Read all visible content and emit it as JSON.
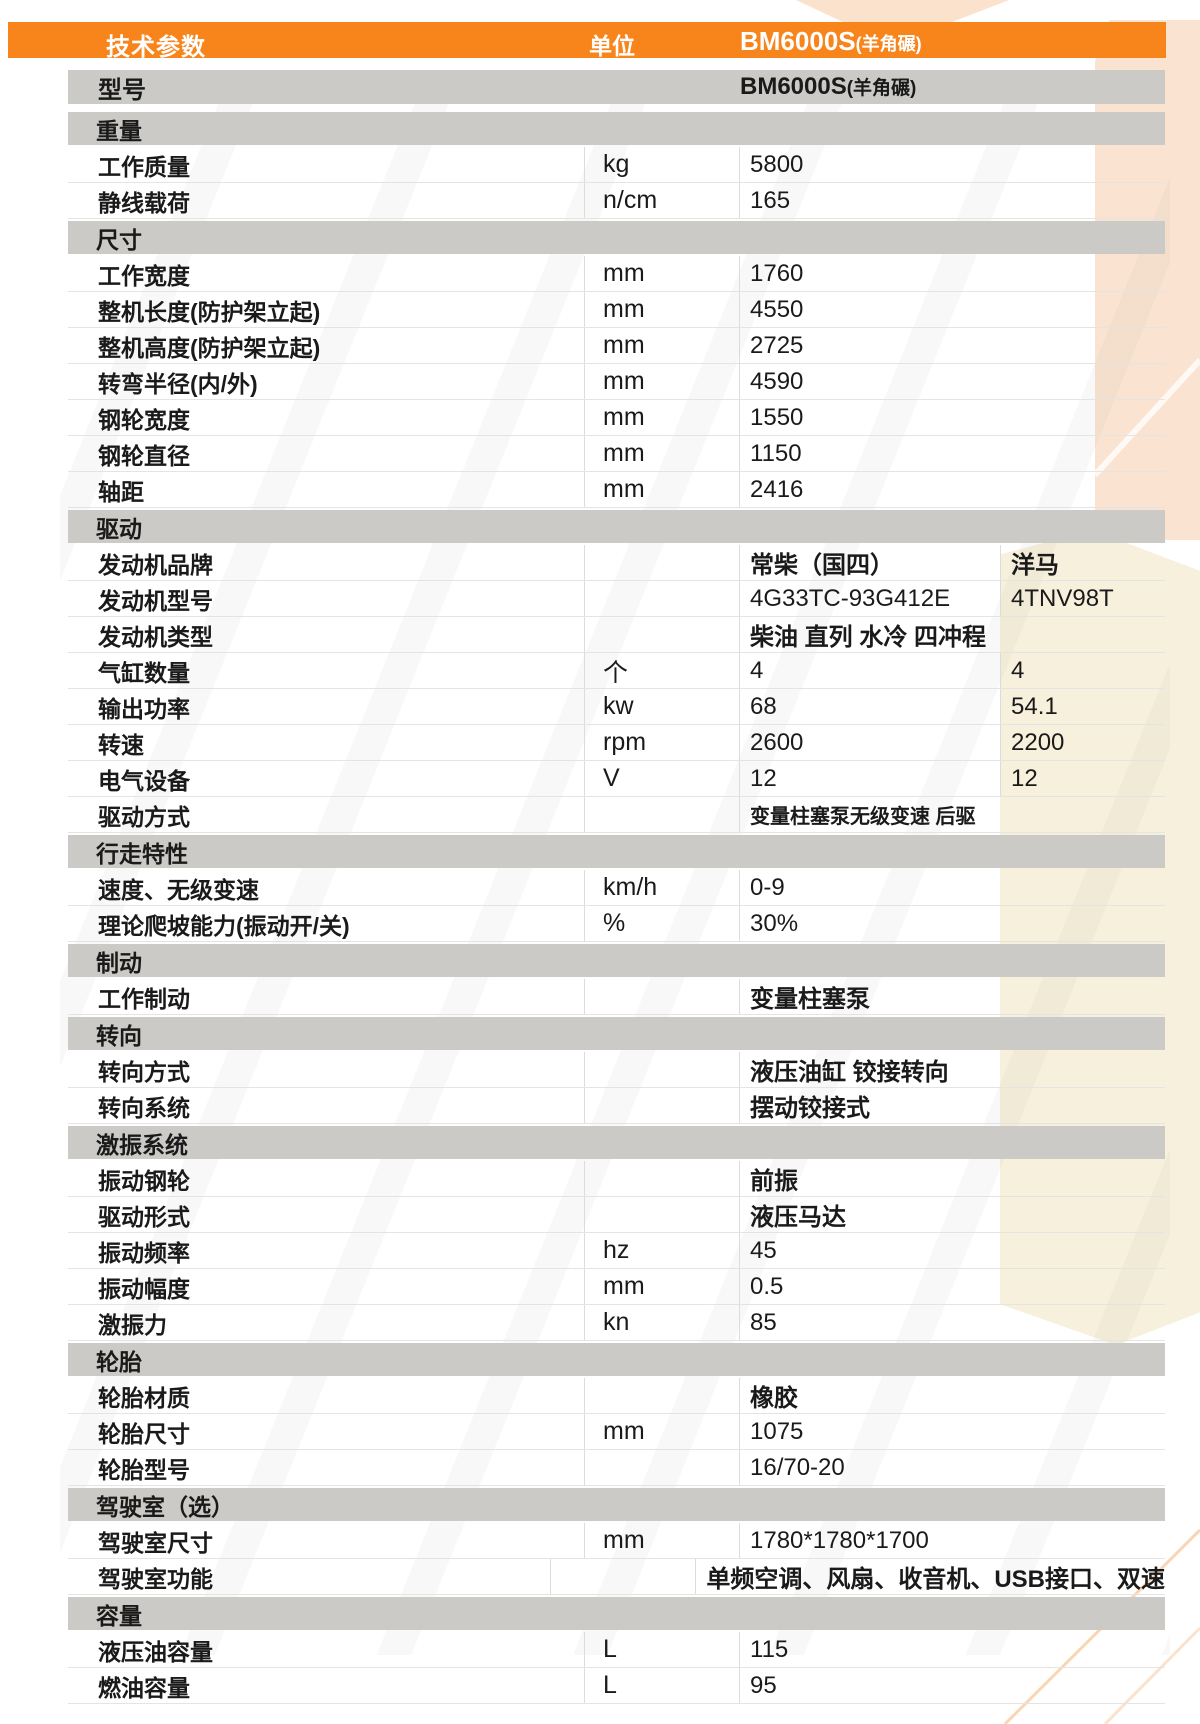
{
  "colors": {
    "accent": "#F8841C",
    "section_bg": "#CBCAC6",
    "row_border": "#E4E4E2",
    "cell_border": "#DCDCDA",
    "peach_band": "#FAE3D0",
    "cream_band": "#F7F0DC",
    "text": "#1A1A1A"
  },
  "header": {
    "title": "技术参数",
    "unit_col": "单位",
    "model_name": "BM6000S",
    "model_suffix": "(羊角碾)"
  },
  "model_row": {
    "label": "型号",
    "value_name": "BM6000S",
    "value_suffix": "(羊角碾)"
  },
  "sections": [
    {
      "title": "重量",
      "rows": [
        {
          "label": "工作质量",
          "unit": "kg",
          "value": "5800"
        },
        {
          "label": "静线载荷",
          "unit": "n/cm",
          "value": "165"
        }
      ]
    },
    {
      "title": "尺寸",
      "rows": [
        {
          "label": "工作宽度",
          "unit": "mm",
          "value": "1760"
        },
        {
          "label": "整机长度(防护架立起)",
          "unit": "mm",
          "value": "4550"
        },
        {
          "label": "整机高度(防护架立起)",
          "unit": "mm",
          "value": "2725"
        },
        {
          "label": "转弯半径(内/外)",
          "unit": "mm",
          "value": "4590"
        },
        {
          "label": "钢轮宽度",
          "unit": "mm",
          "value": "1550"
        },
        {
          "label": "钢轮直径",
          "unit": "mm",
          "value": "1150"
        },
        {
          "label": "轴距",
          "unit": "mm",
          "value": "2416"
        }
      ]
    },
    {
      "title": "驱动",
      "rows": [
        {
          "label": "发动机品牌",
          "unit": "",
          "value": "常柴（国四）",
          "value2": "洋马"
        },
        {
          "label": "发动机型号",
          "unit": "",
          "value": "4G33TC-93G412E",
          "value2": "4TNV98T"
        },
        {
          "label": "发动机类型",
          "unit": "",
          "value": "柴油 直列 水冷 四冲程",
          "value2": ""
        },
        {
          "label": "气缸数量",
          "unit": "个",
          "value": "4",
          "value2": "4"
        },
        {
          "label": "输出功率",
          "unit": "kw",
          "value": "68",
          "value2": "54.1"
        },
        {
          "label": "转速",
          "unit": "rpm",
          "value": "2600",
          "value2": "2200"
        },
        {
          "label": "电气设备",
          "unit": "V",
          "value": "12",
          "value2": "12"
        },
        {
          "label": "驱动方式",
          "unit": "",
          "value": "变量柱塞泵无级变速  后驱",
          "value2": "",
          "small": true
        }
      ]
    },
    {
      "title": "行走特性",
      "rows": [
        {
          "label": "速度、无级变速",
          "unit": "km/h",
          "value": "0-9"
        },
        {
          "label": "理论爬坡能力(振动开/关)",
          "unit": "%",
          "value": "30%"
        }
      ]
    },
    {
      "title": "制动",
      "rows": [
        {
          "label": "工作制动",
          "unit": "",
          "value": "变量柱塞泵"
        }
      ]
    },
    {
      "title": "转向",
      "rows": [
        {
          "label": "转向方式",
          "unit": "",
          "value": "液压油缸 铰接转向"
        },
        {
          "label": "转向系统",
          "unit": "",
          "value": "摆动铰接式"
        }
      ]
    },
    {
      "title": "激振系统",
      "rows": [
        {
          "label": "振动钢轮",
          "unit": "",
          "value": "前振"
        },
        {
          "label": "驱动形式",
          "unit": "",
          "value": "液压马达"
        },
        {
          "label": "振动频率",
          "unit": "hz",
          "value": "45"
        },
        {
          "label": "振动幅度",
          "unit": "mm",
          "value": "0.5"
        },
        {
          "label": "激振力",
          "unit": "kn",
          "value": "85"
        }
      ]
    },
    {
      "title": "轮胎",
      "rows": [
        {
          "label": "轮胎材质",
          "unit": "",
          "value": "橡胶"
        },
        {
          "label": "轮胎尺寸",
          "unit": "mm",
          "value": "1075"
        },
        {
          "label": "轮胎型号",
          "unit": "",
          "value": "16/70-20"
        }
      ]
    },
    {
      "title": "驾驶室（选）",
      "rows": [
        {
          "label": "驾驶室尺寸",
          "unit": "mm",
          "value": "1780*1780*1700"
        },
        {
          "label": "驾驶室功能",
          "unit": "",
          "value": "单频空调、风扇、收音机、USB接口、双速"
        }
      ]
    },
    {
      "title": "容量",
      "rows": [
        {
          "label": "液压油容量",
          "unit": "L",
          "value": "115"
        },
        {
          "label": "燃油容量",
          "unit": "L",
          "value": "95"
        }
      ]
    }
  ]
}
